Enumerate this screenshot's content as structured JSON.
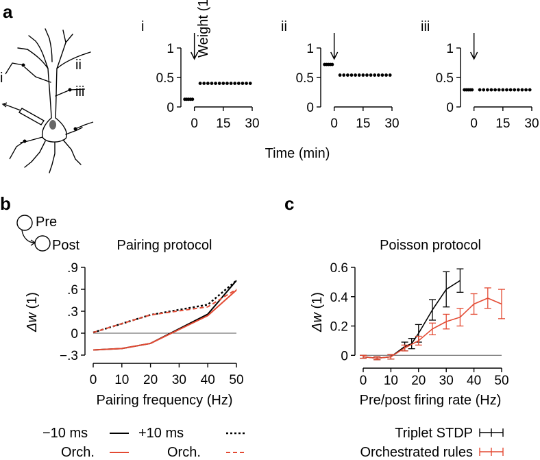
{
  "colors": {
    "black": "#000000",
    "orchestrated": "#e34a33",
    "zero_line": "#555555"
  },
  "panel_a": {
    "letter": "a",
    "neuron_labels": [
      "i",
      "ii",
      "iii"
    ],
    "ylabel": "Weight (1)",
    "xlabel": "Time (min)",
    "ticks_y": [
      "1",
      "0.5",
      "0"
    ],
    "ticks_x": [
      "0",
      "15",
      "30"
    ]
  },
  "panel_b": {
    "letter": "b",
    "schematic": {
      "pre": "Pre",
      "post": "Post"
    },
    "legend": {
      "minus": "−10 ms",
      "plus": "+10 ms",
      "orch_minus": "Orch.",
      "orch_plus": "Orch."
    }
  },
  "panel_c": {
    "letter": "c",
    "legend": {
      "triplet": "Triplet STDP",
      "orchestrated": "Orchestrated rules"
    }
  },
  "chart_data": [
    {
      "type": "scatter",
      "subpanel": "i",
      "xlabel": "",
      "ylabel": "Weight (1)",
      "xticks": [
        0,
        15,
        30
      ],
      "yticks": [
        0,
        0.5,
        1
      ],
      "xlim": [
        -7,
        30
      ],
      "ylim": [
        0,
        1.15
      ],
      "annotation": "arrow at t = 0",
      "x": [
        -5,
        -4,
        -3,
        -2,
        -1,
        3,
        5,
        7,
        9,
        11,
        13,
        15,
        17,
        19,
        21,
        23,
        25,
        27,
        29
      ],
      "values": [
        0.13,
        0.13,
        0.13,
        0.13,
        0.13,
        0.4,
        0.4,
        0.4,
        0.4,
        0.4,
        0.4,
        0.4,
        0.4,
        0.4,
        0.4,
        0.4,
        0.4,
        0.4,
        0.4
      ]
    },
    {
      "type": "scatter",
      "subpanel": "ii",
      "xlabel": "Time (min)",
      "ylabel": "",
      "xticks": [
        0,
        15,
        30
      ],
      "yticks": [
        0,
        0.5,
        1
      ],
      "xlim": [
        -7,
        30
      ],
      "ylim": [
        0,
        1.15
      ],
      "annotation": "arrow at t = 0",
      "x": [
        -5,
        -4,
        -3,
        -2,
        -1,
        3,
        5,
        7,
        9,
        11,
        13,
        15,
        17,
        19,
        21,
        23,
        25,
        27,
        29
      ],
      "values": [
        0.72,
        0.72,
        0.72,
        0.72,
        0.72,
        0.54,
        0.54,
        0.54,
        0.54,
        0.54,
        0.54,
        0.54,
        0.54,
        0.54,
        0.54,
        0.54,
        0.54,
        0.54,
        0.54
      ]
    },
    {
      "type": "scatter",
      "subpanel": "iii",
      "xlabel": "",
      "ylabel": "",
      "xticks": [
        0,
        15,
        30
      ],
      "yticks": [
        0,
        0.5,
        1
      ],
      "xlim": [
        -7,
        30
      ],
      "ylim": [
        0,
        1.15
      ],
      "annotation": "arrow at t = 0",
      "x": [
        -5,
        -4,
        -3,
        -2,
        -1,
        3,
        5,
        7,
        9,
        11,
        13,
        15,
        17,
        19,
        21,
        23,
        25,
        27,
        29
      ],
      "values": [
        0.29,
        0.29,
        0.29,
        0.29,
        0.29,
        0.29,
        0.29,
        0.29,
        0.29,
        0.29,
        0.29,
        0.29,
        0.29,
        0.29,
        0.29,
        0.29,
        0.29,
        0.29,
        0.29
      ]
    },
    {
      "type": "line",
      "panel": "b",
      "title": "Pairing protocol",
      "xlabel": "Pairing frequency (Hz)",
      "ylabel": "Δw (1)",
      "xlim": [
        0,
        50
      ],
      "ylim": [
        -0.3,
        0.9
      ],
      "xticks": [
        0,
        10,
        20,
        30,
        40,
        50
      ],
      "yticks": [
        -0.3,
        0,
        0.3,
        0.6,
        0.9
      ],
      "zero_line": true,
      "legend_position": "bottom",
      "x": [
        0,
        10,
        20,
        40,
        50
      ],
      "series": [
        {
          "name": "−10 ms",
          "style": "solid",
          "color": "#000000",
          "values": [
            -0.23,
            -0.21,
            -0.14,
            0.26,
            0.72
          ]
        },
        {
          "name": "+10 ms",
          "style": "dotted",
          "color": "#000000",
          "values": [
            0.01,
            0.13,
            0.25,
            0.39,
            0.72
          ]
        },
        {
          "name": "Orch.",
          "style": "solid",
          "color": "#e34a33",
          "values": [
            -0.23,
            -0.21,
            -0.14,
            0.24,
            0.59
          ]
        },
        {
          "name": "Orch.",
          "style": "dashed",
          "color": "#e34a33",
          "values": [
            0.01,
            0.13,
            0.25,
            0.36,
            0.6
          ]
        }
      ]
    },
    {
      "type": "line",
      "panel": "c",
      "title": "Poisson protocol",
      "xlabel": "Pre/post firing rate (Hz)",
      "ylabel": "Δw (1)",
      "xlim": [
        0,
        50
      ],
      "ylim": [
        -0.05,
        0.6
      ],
      "xticks": [
        0,
        10,
        20,
        30,
        40,
        50
      ],
      "yticks": [
        0,
        0.2,
        0.4,
        0.6
      ],
      "zero_line": true,
      "error_bars": true,
      "legend_position": "bottom-right",
      "series": [
        {
          "name": "Triplet STDP",
          "color": "#000000",
          "x": [
            0,
            5,
            10,
            15,
            17.5,
            20,
            25,
            30,
            35
          ],
          "values": [
            -0.01,
            -0.02,
            -0.01,
            0.06,
            0.08,
            0.15,
            0.31,
            0.45,
            0.51
          ],
          "err": [
            0.01,
            0.01,
            0.015,
            0.03,
            0.035,
            0.06,
            0.07,
            0.12,
            0.08
          ]
        },
        {
          "name": "Orchestrated rules",
          "color": "#e34a33",
          "x": [
            0,
            5,
            10,
            15,
            20,
            25,
            30,
            35,
            40,
            45,
            50
          ],
          "values": [
            -0.01,
            -0.02,
            -0.01,
            0.05,
            0.1,
            0.18,
            0.23,
            0.26,
            0.35,
            0.39,
            0.35
          ],
          "err": [
            0.01,
            0.01,
            0.015,
            0.02,
            0.03,
            0.04,
            0.05,
            0.06,
            0.07,
            0.07,
            0.1
          ]
        }
      ]
    }
  ]
}
